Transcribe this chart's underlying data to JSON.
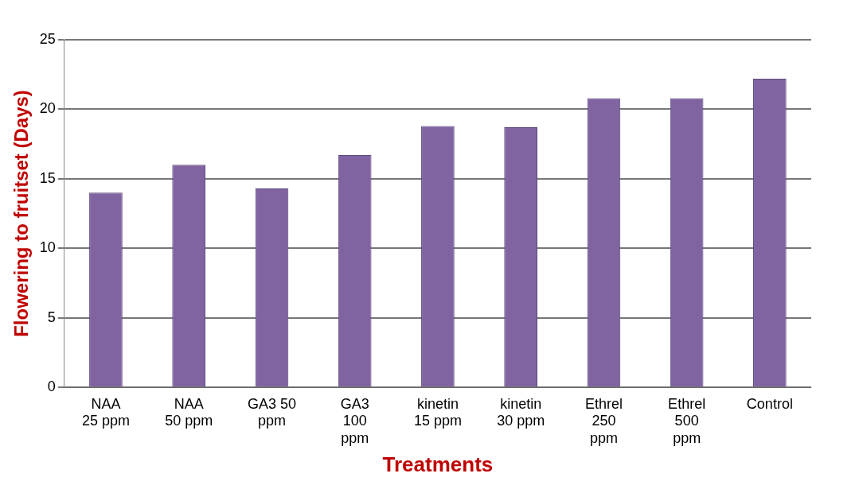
{
  "chart_data": {
    "type": "bar",
    "xlabel": "Treatments",
    "ylabel": "Flowering to fruitset (Days)",
    "categories": [
      "NAA 25 ppm",
      "NAA 50 ppm",
      "GA3  50 ppm",
      "GA3 100 ppm",
      "kinetin 15 ppm",
      "kinetin 30 ppm",
      "Ethrel 250 ppm",
      "Ethrel 500 ppm",
      "Control"
    ],
    "values": [
      14,
      16,
      14.3,
      16.7,
      18.8,
      18.7,
      20.8,
      20.8,
      22.2
    ],
    "color": "#8064a2",
    "ylim": [
      0,
      25
    ],
    "yticks": [
      0,
      5,
      10,
      15,
      20,
      25
    ],
    "grid": "y",
    "legend": false
  }
}
